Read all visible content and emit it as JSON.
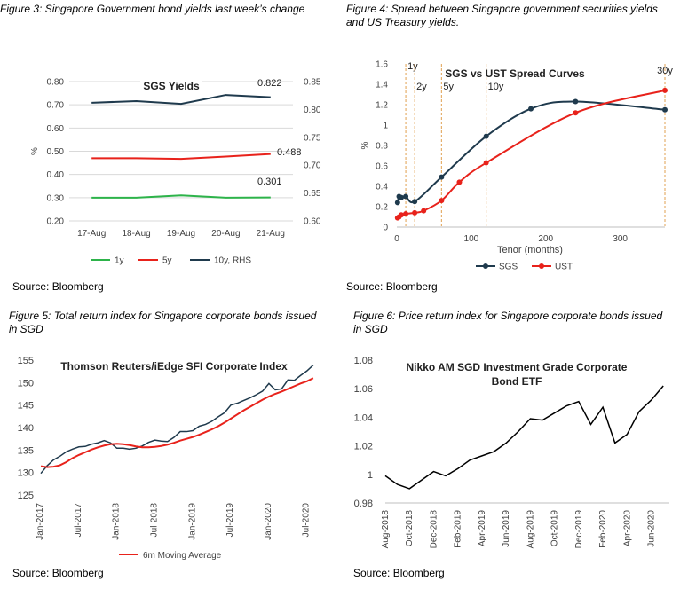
{
  "panels": {
    "fig3": {
      "title": "Figure 3: Singapore Government bond yields last week’s change",
      "source": "Source: Bloomberg"
    },
    "fig4": {
      "title_l1": "Figure 4: Spread between Singapore government securities yields",
      "title_l2": "and US Treasury yields.",
      "source": "Source: Bloomberg"
    },
    "fig5": {
      "title_l1": "Figure 5: Total return index for Singapore corporate bonds issued",
      "title_l2": "in SGD",
      "source": "Source: Bloomberg"
    },
    "fig6": {
      "title_l1": "Figure 6: Price return index for Singapore corporate bonds issued",
      "title_l2": "in SGD",
      "source": "Source: Bloomberg"
    }
  },
  "chart_data": [
    {
      "id": "fig3",
      "type": "line",
      "title": "SGS Yields",
      "ylabel": "%",
      "categories": [
        "17-Aug",
        "18-Aug",
        "19-Aug",
        "20-Aug",
        "21-Aug"
      ],
      "ylim": [
        0.2,
        0.8
      ],
      "yticks": [
        "0.20",
        "0.30",
        "0.40",
        "0.50",
        "0.60",
        "0.70",
        "0.80"
      ],
      "y2lim": [
        0.6,
        0.85
      ],
      "y2ticks": [
        "0.60",
        "0.65",
        "0.70",
        "0.75",
        "0.80",
        "0.85"
      ],
      "series": [
        {
          "name": "1y",
          "axis": "left",
          "color": "#2db34a",
          "values": [
            0.3,
            0.3,
            0.31,
            0.3,
            0.301
          ]
        },
        {
          "name": "5y",
          "axis": "left",
          "color": "#e8221b",
          "values": [
            0.47,
            0.47,
            0.467,
            0.477,
            0.488
          ]
        },
        {
          "name": "10y, RHS",
          "axis": "right",
          "color": "#1f3a4d",
          "values": [
            0.812,
            0.815,
            0.81,
            0.826,
            0.822
          ]
        }
      ],
      "annotations": [
        "0.822",
        "0.488",
        "0.301"
      ],
      "legend": "bottom"
    },
    {
      "id": "fig4",
      "type": "line",
      "title": "SGS vs UST Spread Curves",
      "ylabel": "%",
      "xlabel": "Tenor (months)",
      "xlim": [
        0,
        360
      ],
      "xticks": [
        "0",
        "100",
        "200",
        "300"
      ],
      "ylim": [
        0,
        1.6
      ],
      "yticks": [
        "0",
        "0.2",
        "0.4",
        "0.6",
        "0.8",
        "1",
        "1.2",
        "1.4",
        "1.6"
      ],
      "vlines": [
        {
          "label": "1y",
          "x": 12
        },
        {
          "label": "2y",
          "x": 24
        },
        {
          "label": "5y",
          "x": 60
        },
        {
          "label": "10y",
          "x": 120
        },
        {
          "label": "30y",
          "x": 360
        }
      ],
      "series": [
        {
          "name": "SGS",
          "color": "#1f3a4d",
          "x": [
            1,
            3,
            6,
            12,
            24,
            60,
            120,
            180,
            240,
            360
          ],
          "y": [
            0.24,
            0.3,
            0.29,
            0.3,
            0.25,
            0.49,
            0.89,
            1.16,
            1.23,
            1.15
          ]
        },
        {
          "name": "UST",
          "color": "#e8221b",
          "x": [
            1,
            3,
            6,
            12,
            24,
            36,
            60,
            84,
            120,
            240,
            360
          ],
          "y": [
            0.09,
            0.1,
            0.12,
            0.13,
            0.14,
            0.16,
            0.26,
            0.44,
            0.63,
            1.12,
            1.34
          ]
        }
      ],
      "legend": "bottom"
    },
    {
      "id": "fig5",
      "type": "line",
      "title": "Thomson Reuters/iEdge SFI Corporate Index",
      "ylim": [
        125,
        155
      ],
      "yticks": [
        "125",
        "130",
        "135",
        "140",
        "145",
        "150",
        "155"
      ],
      "xticks": [
        "Jan-2017",
        "Jul-2017",
        "Jan-2018",
        "Jul-2018",
        "Jan-2019",
        "Jul-2019",
        "Jan-2020",
        "Jul-2020"
      ],
      "x_range_months": [
        0,
        44
      ],
      "series": [
        {
          "name": "",
          "color": "#1f3a4d",
          "values": [
            129.8,
            131.5,
            132.8,
            133.6,
            134.6,
            135.2,
            135.7,
            135.8,
            136.3,
            136.6,
            137.1,
            136.6,
            135.4,
            135.4,
            135.2,
            135.4,
            135.9,
            136.7,
            137.2,
            137.0,
            136.9,
            137.8,
            139.1,
            139.1,
            139.3,
            140.3,
            140.7,
            141.4,
            142.4,
            143.3,
            145.0,
            145.4,
            146.0,
            146.6,
            147.3,
            148.1,
            149.8,
            148.4,
            148.6,
            150.6,
            150.5,
            151.6,
            152.6,
            153.9
          ]
        },
        {
          "name": "6m Moving Average",
          "color": "#e8221b",
          "values": [
            131.4,
            131.2,
            131.3,
            131.6,
            132.3,
            133.2,
            133.9,
            134.5,
            135.1,
            135.6,
            136.0,
            136.3,
            136.4,
            136.3,
            136.1,
            135.8,
            135.6,
            135.6,
            135.7,
            135.9,
            136.2,
            136.6,
            137.1,
            137.5,
            137.9,
            138.4,
            139.0,
            139.6,
            140.3,
            141.1,
            142.0,
            142.9,
            143.8,
            144.6,
            145.4,
            146.2,
            146.9,
            147.5,
            148.0,
            148.6,
            149.2,
            149.8,
            150.3,
            151.0
          ]
        }
      ],
      "legend": "bottom"
    },
    {
      "id": "fig6",
      "type": "line",
      "title_l1": "Nikko AM SGD Investment Grade Corporate",
      "title_l2": "Bond ETF",
      "ylim": [
        0.98,
        1.08
      ],
      "yticks": [
        "0.98",
        "1",
        "1.02",
        "1.04",
        "1.06",
        "1.08"
      ],
      "xticks": [
        "Aug-2018",
        "Oct-2018",
        "Dec-2018",
        "Feb-2019",
        "Apr-2019",
        "Jun-2019",
        "Aug-2019",
        "Oct-2019",
        "Dec-2019",
        "Feb-2020",
        "Apr-2020",
        "Jun-2020"
      ],
      "x_range_months": [
        0,
        23.5
      ],
      "series": [
        {
          "name": "",
          "color": "#000000",
          "x": [
            0,
            1,
            2,
            3,
            4,
            5,
            6,
            7,
            8,
            9,
            10,
            11,
            12,
            13,
            14,
            15,
            16,
            17,
            17.5,
            18,
            19,
            20,
            21,
            22,
            23
          ],
          "y": [
            0.999,
            0.993,
            0.99,
            0.996,
            1.002,
            0.999,
            1.004,
            1.01,
            1.013,
            1.016,
            1.022,
            1.03,
            1.039,
            1.038,
            1.043,
            1.048,
            1.051,
            1.035,
            1.041,
            1.047,
            1.022,
            1.028,
            1.044,
            1.052,
            1.062
          ]
        }
      ]
    }
  ]
}
